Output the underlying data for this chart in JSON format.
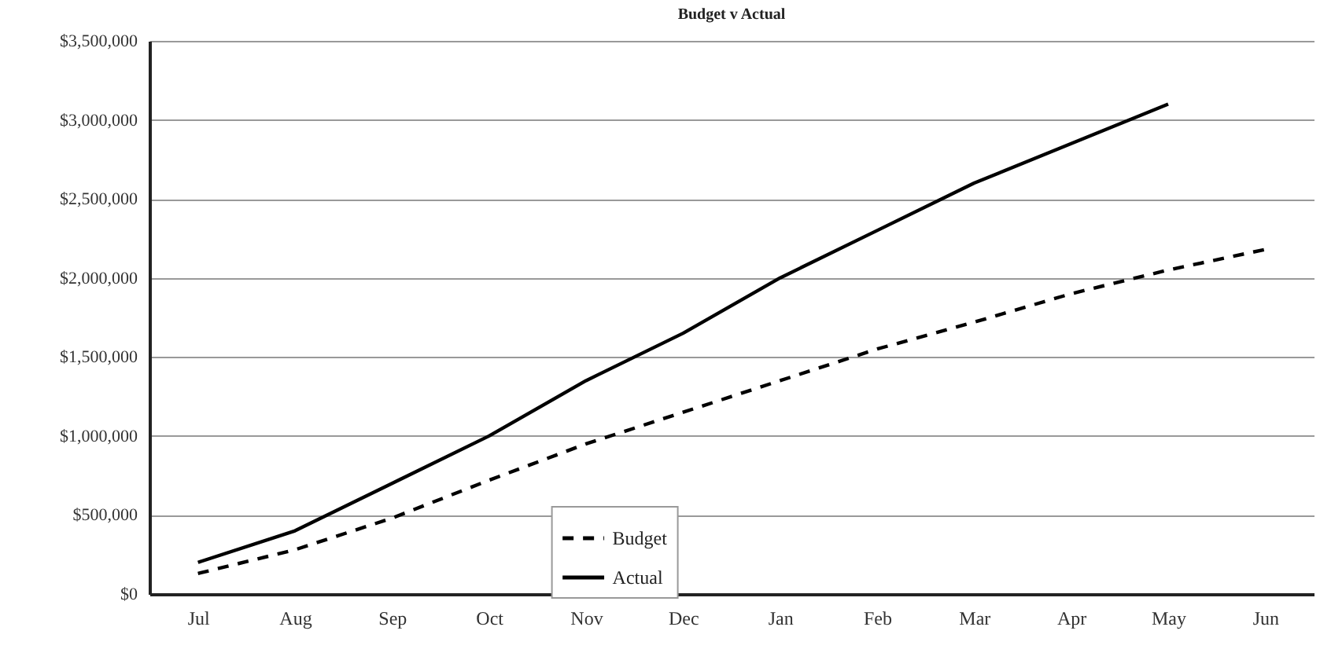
{
  "chart_data": {
    "type": "line",
    "title": "Budget v Actual",
    "categories": [
      "Jul",
      "Aug",
      "Sep",
      "Oct",
      "Nov",
      "Dec",
      "Jan",
      "Feb",
      "Mar",
      "Apr",
      "May",
      "Jun"
    ],
    "series": [
      {
        "name": "Budget",
        "color": "#000000",
        "line_style": "dashed",
        "values": [
          130000,
          280000,
          480000,
          720000,
          950000,
          1150000,
          1350000,
          1550000,
          1720000,
          1900000,
          2050000,
          2180000
        ]
      },
      {
        "name": "Actual",
        "color": "#000000",
        "line_style": "solid",
        "values": [
          200000,
          400000,
          700000,
          1000000,
          1350000,
          1650000,
          2000000,
          2300000,
          2600000,
          2850000,
          3100000,
          null
        ]
      }
    ],
    "ylim": [
      0,
      3500000
    ],
    "yticks": [
      {
        "value": 0,
        "label": "$0"
      },
      {
        "value": 500000,
        "label": "$500,000"
      },
      {
        "value": 1000000,
        "label": "$1,000,000"
      },
      {
        "value": 1500000,
        "label": "$1,500,000"
      },
      {
        "value": 2000000,
        "label": "$2,000,000"
      },
      {
        "value": 2500000,
        "label": "$2,500,000"
      },
      {
        "value": 3000000,
        "label": "$3,000,000"
      },
      {
        "value": 3500000,
        "label": "$3,500,000"
      }
    ],
    "grid": "y",
    "legend": "bottom",
    "marker": "none"
  }
}
